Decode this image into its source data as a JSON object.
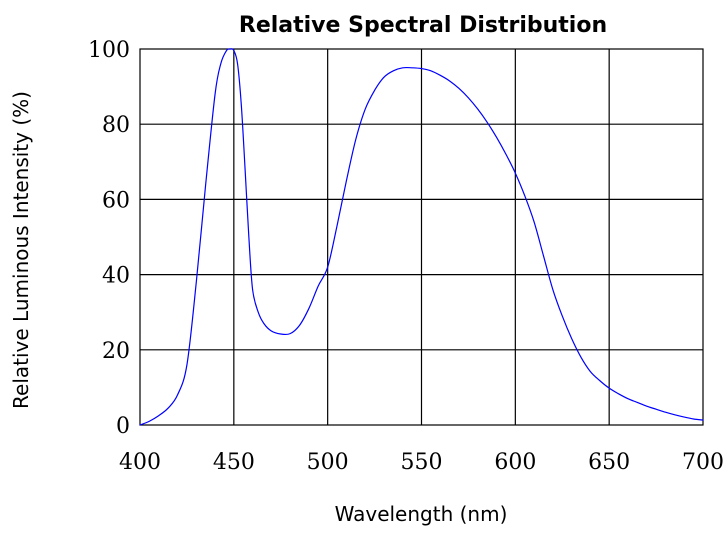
{
  "chart_data": {
    "type": "line",
    "title": "Relative Spectral Distribution",
    "xlabel": "Wavelength (nm)",
    "ylabel": "Relative Luminous Intensity (%)",
    "xlim": [
      400,
      700
    ],
    "ylim": [
      0,
      100
    ],
    "x_ticks": [
      400,
      450,
      500,
      550,
      600,
      650,
      700
    ],
    "y_ticks": [
      0,
      20,
      40,
      60,
      80,
      100
    ],
    "grid": true,
    "legend": "none",
    "line_color": "#0000ff",
    "series": [
      {
        "x": [
          400,
          405,
          410,
          415,
          420,
          425,
          430,
          435,
          440,
          443,
          446,
          448,
          450,
          452,
          454,
          456,
          458,
          460,
          463,
          466,
          470,
          475,
          480,
          485,
          490,
          495,
          500,
          505,
          510,
          515,
          520,
          525,
          530,
          535,
          540,
          545,
          550,
          555,
          560,
          565,
          570,
          575,
          580,
          585,
          590,
          595,
          600,
          605,
          610,
          615,
          620,
          625,
          630,
          635,
          640,
          645,
          650,
          655,
          660,
          665,
          670,
          675,
          680,
          685,
          690,
          695,
          700
        ],
        "y": [
          0,
          1,
          2.5,
          4.5,
          8,
          16,
          38,
          64,
          88,
          96,
          99.5,
          100,
          99.6,
          96,
          85,
          68,
          50,
          36,
          30,
          27,
          25,
          24.2,
          24.3,
          26.5,
          31,
          37,
          42,
          53,
          65,
          76,
          84,
          89,
          92.5,
          94.2,
          95,
          95,
          94.8,
          94.2,
          93,
          91.5,
          89.5,
          87,
          84,
          80.5,
          76.5,
          72,
          67,
          61,
          54,
          45,
          36,
          29,
          23,
          18,
          14.2,
          11.8,
          9.8,
          8.3,
          7,
          6,
          5,
          4.2,
          3.4,
          2.7,
          2.1,
          1.6,
          1.3
        ]
      }
    ]
  }
}
